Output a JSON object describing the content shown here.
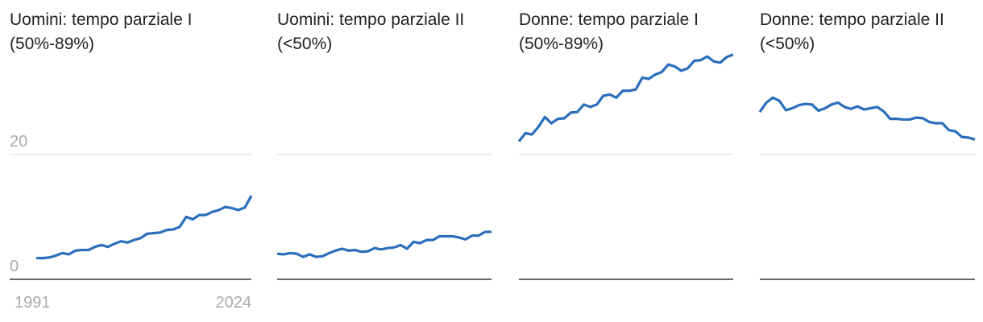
{
  "chart_data": [
    {
      "type": "line",
      "title": "Uomini: tempo parziale I (50%-89%)",
      "color": "#2a6ebb",
      "show_tick_labels": true,
      "x": [
        1991,
        1992,
        1993,
        1994,
        1995,
        1996,
        1997,
        1998,
        1999,
        2000,
        2001,
        2002,
        2003,
        2004,
        2005,
        2006,
        2007,
        2008,
        2009,
        2010,
        2011,
        2012,
        2013,
        2014,
        2015,
        2016,
        2017,
        2018,
        2019,
        2020,
        2021,
        2022,
        2023,
        2024
      ],
      "values": [
        3.4,
        3.4,
        3.5,
        3.8,
        4.2,
        4.0,
        4.6,
        4.7,
        4.7,
        5.2,
        5.5,
        5.2,
        5.7,
        6.1,
        5.9,
        6.3,
        6.6,
        7.3,
        7.4,
        7.5,
        7.9,
        8.0,
        8.4,
        10.0,
        9.6,
        10.3,
        10.3,
        10.8,
        11.1,
        11.6,
        11.4,
        11.1,
        11.5,
        13.4
      ],
      "xlim": [
        1991,
        2024
      ],
      "xticks": [
        1991,
        2024
      ],
      "ylim": [
        0,
        37
      ],
      "yticks": [
        0,
        20
      ]
    },
    {
      "type": "line",
      "title": "Uomini: tempo parziale II (<50%)",
      "color": "#2a6ebb",
      "show_tick_labels": false,
      "x": [
        1991,
        1992,
        1993,
        1994,
        1995,
        1996,
        1997,
        1998,
        1999,
        2000,
        2001,
        2002,
        2003,
        2004,
        2005,
        2006,
        2007,
        2008,
        2009,
        2010,
        2011,
        2012,
        2013,
        2014,
        2015,
        2016,
        2017,
        2018,
        2019,
        2020,
        2021,
        2022,
        2023,
        2024
      ],
      "values": [
        4.1,
        4.0,
        4.2,
        4.1,
        3.6,
        4.0,
        3.6,
        3.7,
        4.2,
        4.6,
        4.9,
        4.6,
        4.7,
        4.4,
        4.5,
        5.0,
        4.8,
        5.0,
        5.1,
        5.5,
        4.9,
        6.0,
        5.8,
        6.3,
        6.3,
        6.9,
        6.9,
        6.9,
        6.7,
        6.4,
        7.0,
        7.0,
        7.6,
        7.6
      ],
      "xlim": [
        1991,
        2024
      ],
      "ylim": [
        0,
        37
      ],
      "yticks": [
        0,
        20
      ]
    },
    {
      "type": "line",
      "title": "Donne: tempo parziale I (50%-89%)",
      "color": "#2a6ebb",
      "show_tick_labels": false,
      "x": [
        1991,
        1992,
        1993,
        1994,
        1995,
        1996,
        1997,
        1998,
        1999,
        2000,
        2001,
        2002,
        2003,
        2004,
        2005,
        2006,
        2007,
        2008,
        2009,
        2010,
        2011,
        2012,
        2013,
        2014,
        2015,
        2016,
        2017,
        2018,
        2019,
        2020,
        2021,
        2022,
        2023,
        2024
      ],
      "values": [
        22.1,
        23.4,
        23.2,
        24.4,
        26.0,
        25.0,
        25.7,
        25.8,
        26.7,
        26.8,
        28.0,
        27.6,
        28.0,
        29.4,
        29.6,
        29.1,
        30.2,
        30.2,
        30.4,
        32.3,
        32.1,
        32.8,
        33.2,
        34.4,
        34.1,
        33.4,
        33.8,
        35.0,
        35.1,
        35.7,
        34.9,
        34.7,
        35.6,
        36.0
      ],
      "xlim": [
        1991,
        2024
      ],
      "ylim": [
        0,
        37
      ],
      "yticks": [
        0,
        20
      ]
    },
    {
      "type": "line",
      "title": "Donne: tempo parziale II (<50%)",
      "color": "#2a6ebb",
      "show_tick_labels": false,
      "x": [
        1991,
        1992,
        1993,
        1994,
        1995,
        1996,
        1997,
        1998,
        1999,
        2000,
        2001,
        2002,
        2003,
        2004,
        2005,
        2006,
        2007,
        2008,
        2009,
        2010,
        2011,
        2012,
        2013,
        2014,
        2015,
        2016,
        2017,
        2018,
        2019,
        2020,
        2021,
        2022,
        2023,
        2024
      ],
      "values": [
        26.8,
        28.3,
        29.1,
        28.6,
        27.1,
        27.4,
        27.9,
        28.1,
        28.0,
        27.0,
        27.4,
        28.0,
        28.3,
        27.6,
        27.3,
        27.7,
        27.2,
        27.4,
        27.6,
        26.9,
        25.7,
        25.7,
        25.6,
        25.6,
        25.9,
        25.8,
        25.2,
        25.0,
        25.0,
        23.9,
        23.7,
        22.8,
        22.7,
        22.4
      ],
      "xlim": [
        1991,
        2024
      ],
      "ylim": [
        0,
        37
      ],
      "yticks": [
        0,
        20
      ]
    }
  ]
}
